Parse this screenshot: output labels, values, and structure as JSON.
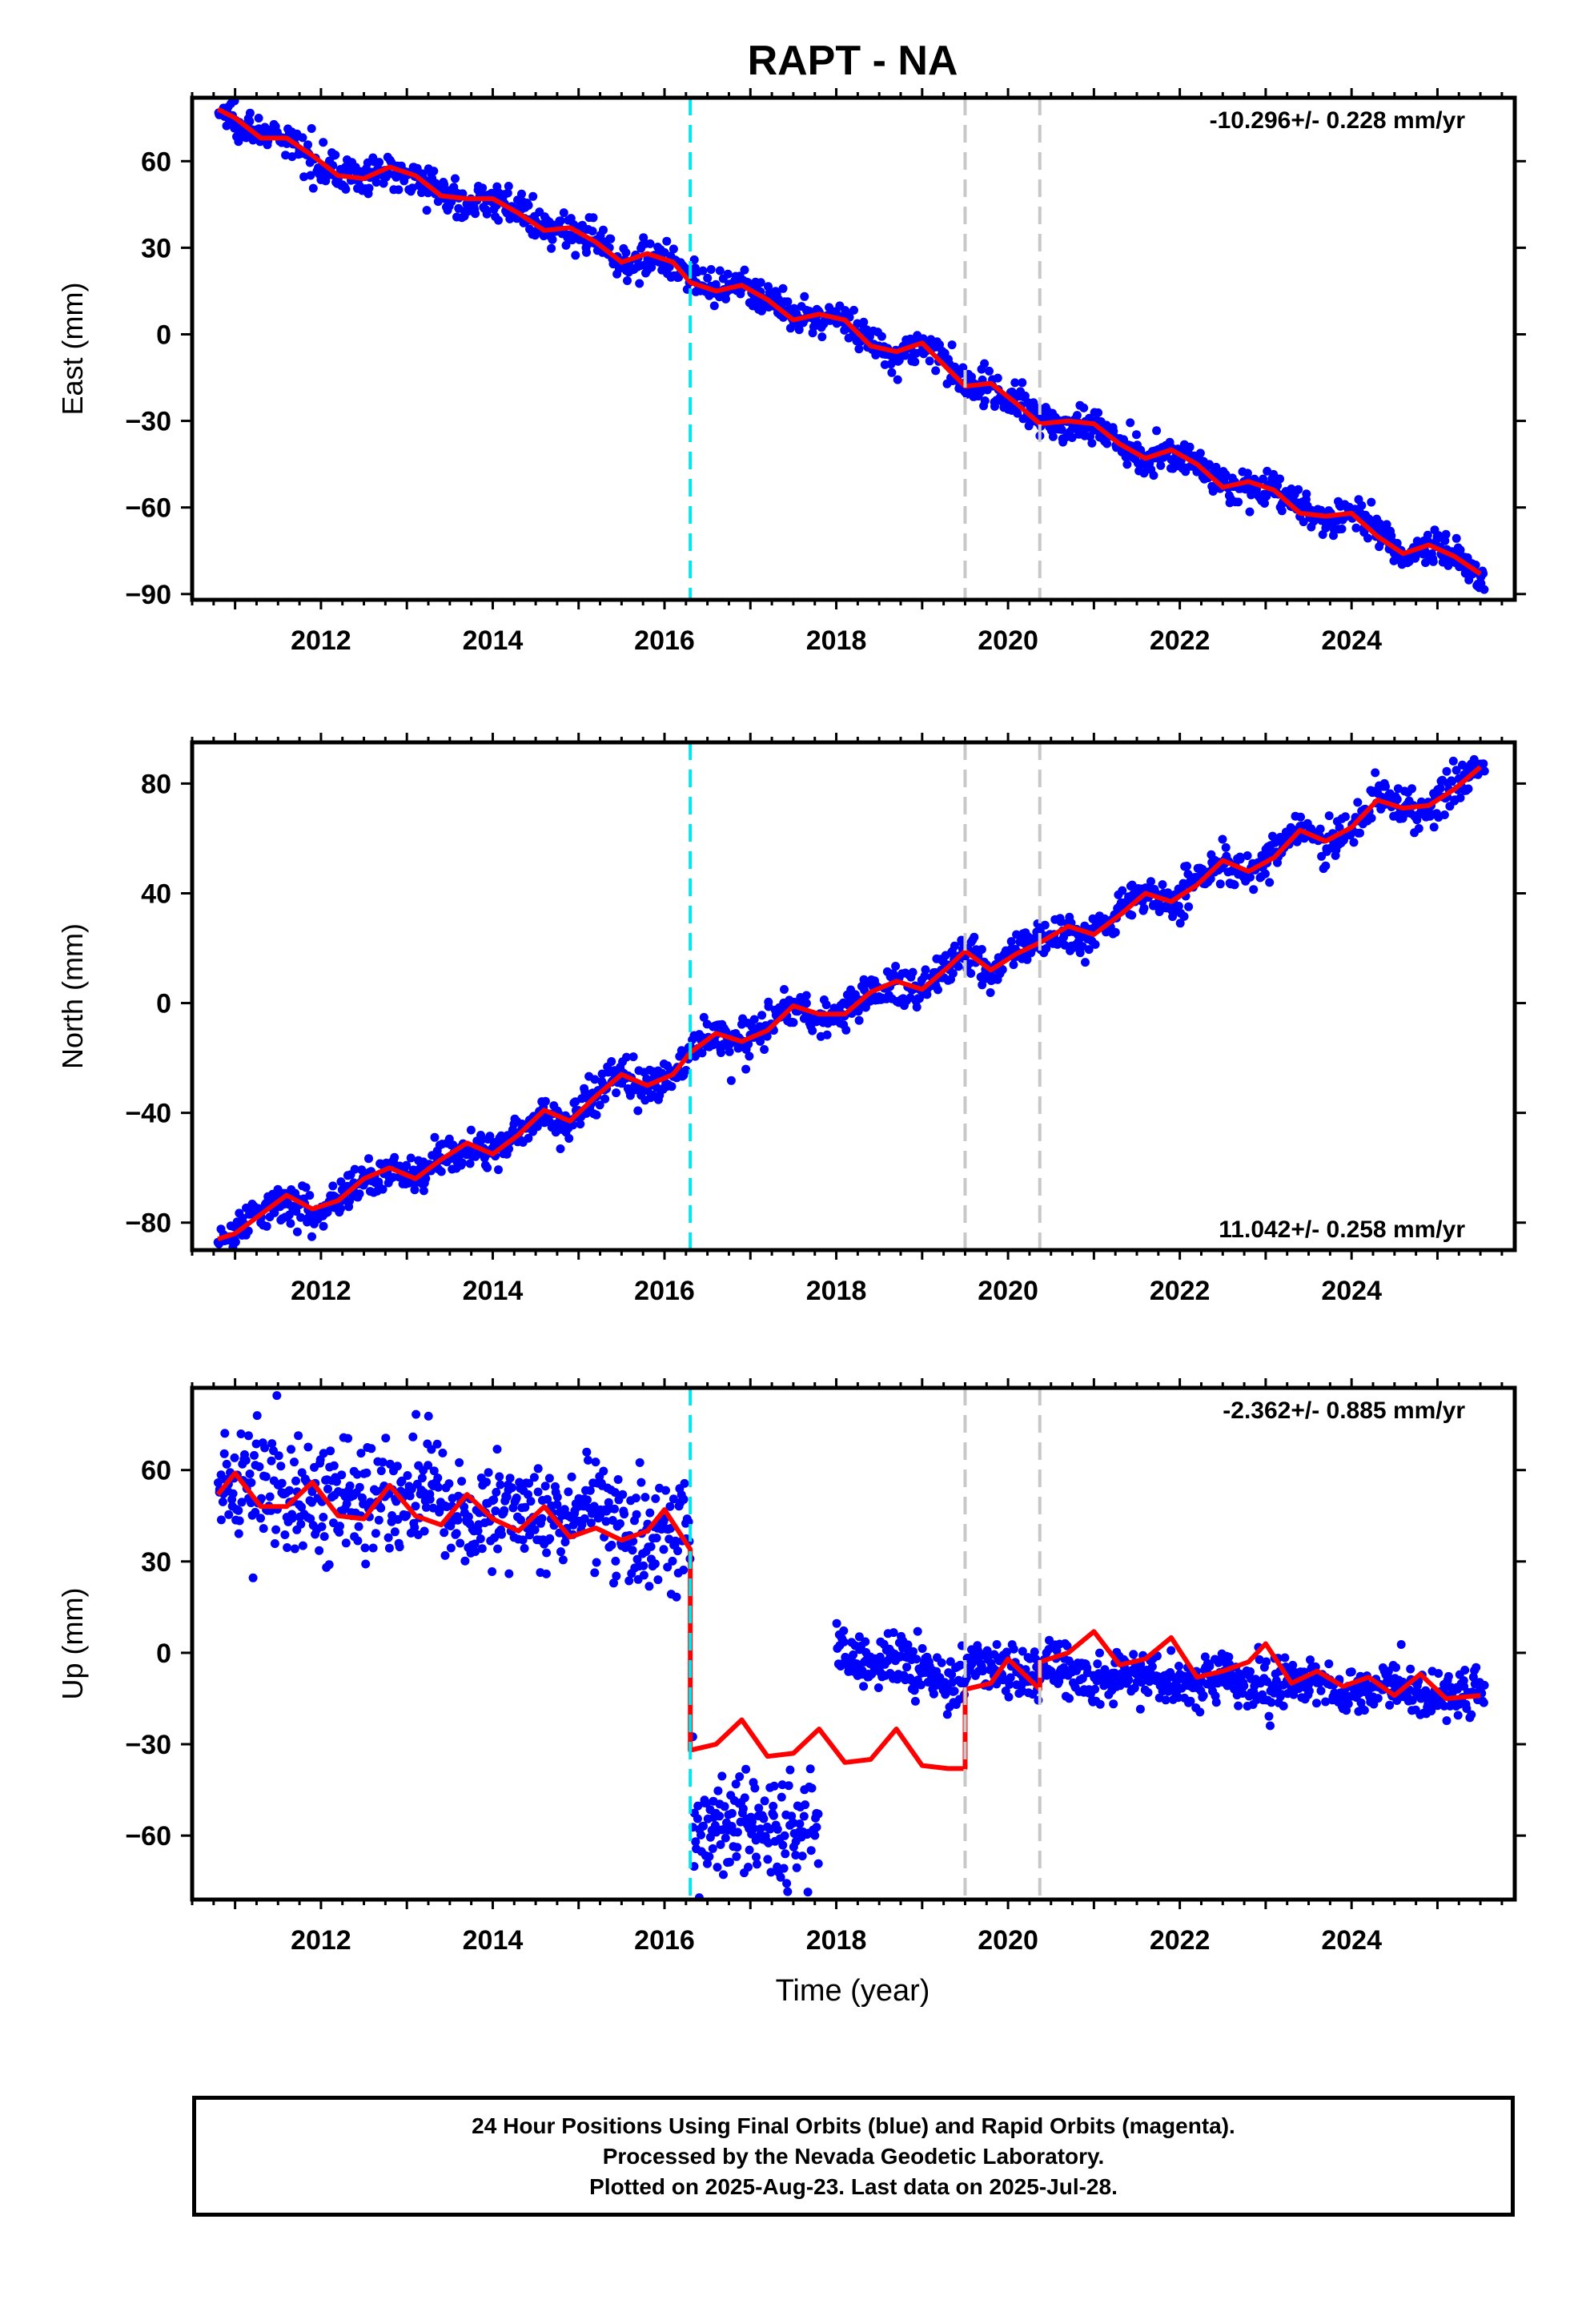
{
  "figure": {
    "title": "RAPT - NA",
    "xlabel": "Time (year)"
  },
  "footer": {
    "line1": "24 Hour Positions Using Final Orbits (blue) and Rapid Orbits (magenta).",
    "line2": "Processed by the Nevada Geodetic Laboratory.",
    "line3": "Plotted on 2025-Aug-23. Last data on 2025-Jul-28."
  },
  "colors": {
    "observations": "#0000ff",
    "model": "#ff0000",
    "antenna_change_line": "#00e5ee",
    "equipment_change_line": "#c8c8c8"
  },
  "chart_data": [
    {
      "type": "scatter",
      "component": "east",
      "ylabel": "East (mm)",
      "rate_label": "-10.296+/- 0.228 mm/yr",
      "rate_position": "top-right",
      "xlim": [
        2010.5,
        2025.9
      ],
      "ylim": [
        -92,
        82
      ],
      "yticks": [
        -90,
        -60,
        -30,
        0,
        30,
        60
      ],
      "ytick_labels": [
        "−90",
        "−60",
        "−30",
        "0",
        "30",
        "60"
      ],
      "xticks": [
        2012,
        2014,
        2016,
        2018,
        2020,
        2022,
        2024
      ],
      "xtick_labels": [
        "2012",
        "2014",
        "2016",
        "2018",
        "2020",
        "2022",
        "2024"
      ],
      "vertical_lines": [
        {
          "x": 2016.3,
          "kind": "antenna"
        },
        {
          "x": 2019.5,
          "kind": "equipment"
        },
        {
          "x": 2020.37,
          "kind": "equipment"
        }
      ],
      "model_line": {
        "x": [
          2010.8,
          2011.0,
          2011.3,
          2011.6,
          2011.9,
          2012.2,
          2012.5,
          2012.8,
          2013.1,
          2013.4,
          2013.7,
          2014.0,
          2014.3,
          2014.6,
          2014.9,
          2015.2,
          2015.5,
          2015.8,
          2016.1,
          2016.3,
          2016.6,
          2016.9,
          2017.2,
          2017.5,
          2017.8,
          2018.1,
          2018.4,
          2018.7,
          2019.0,
          2019.3,
          2019.5,
          2019.8,
          2020.1,
          2020.37,
          2020.7,
          2021.0,
          2021.3,
          2021.6,
          2021.9,
          2022.2,
          2022.5,
          2022.8,
          2023.1,
          2023.4,
          2023.7,
          2024.0,
          2024.3,
          2024.6,
          2024.9,
          2025.2,
          2025.5
        ],
        "y": [
          78,
          75,
          68,
          68,
          62,
          55,
          54,
          58,
          55,
          48,
          47,
          47,
          42,
          36,
          37,
          32,
          25,
          28,
          25,
          18,
          15,
          17,
          12,
          5,
          7,
          5,
          -4,
          -6,
          -3,
          -12,
          -18,
          -17,
          -24,
          -31,
          -30,
          -31,
          -38,
          -43,
          -40,
          -45,
          -53,
          -51,
          -54,
          -62,
          -63,
          -62,
          -70,
          -76,
          -73,
          -77,
          -83
        ]
      },
      "observations": {
        "x_start": 2010.8,
        "x_end": 2025.55,
        "count": 1300,
        "y_trend_start": 77,
        "y_trend_end": -84,
        "scatter_mm": 3,
        "seasonal_amplitude_mm": 3,
        "note_offsets": []
      }
    },
    {
      "type": "scatter",
      "component": "north",
      "ylabel": "North (mm)",
      "rate_label": "11.042+/- 0.258 mm/yr",
      "rate_position": "bottom-right",
      "xlim": [
        2010.5,
        2025.9
      ],
      "ylim": [
        -90,
        95
      ],
      "yticks": [
        -80,
        -40,
        0,
        40,
        80
      ],
      "ytick_labels": [
        "−80",
        "−40",
        "0",
        "40",
        "80"
      ],
      "xticks": [
        2012,
        2014,
        2016,
        2018,
        2020,
        2022,
        2024
      ],
      "xtick_labels": [
        "2012",
        "2014",
        "2016",
        "2018",
        "2020",
        "2022",
        "2024"
      ],
      "vertical_lines": [
        {
          "x": 2016.3,
          "kind": "antenna"
        },
        {
          "x": 2019.5,
          "kind": "equipment"
        },
        {
          "x": 2020.37,
          "kind": "equipment"
        }
      ],
      "model_line": {
        "x": [
          2010.8,
          2011.0,
          2011.3,
          2011.6,
          2011.9,
          2012.2,
          2012.5,
          2012.8,
          2013.1,
          2013.4,
          2013.7,
          2014.0,
          2014.3,
          2014.6,
          2014.9,
          2015.2,
          2015.5,
          2015.8,
          2016.1,
          2016.3,
          2016.6,
          2016.9,
          2017.2,
          2017.5,
          2017.8,
          2018.1,
          2018.4,
          2018.7,
          2019.0,
          2019.3,
          2019.5,
          2019.8,
          2020.1,
          2020.37,
          2020.7,
          2021.0,
          2021.3,
          2021.6,
          2021.9,
          2022.2,
          2022.5,
          2022.8,
          2023.1,
          2023.4,
          2023.7,
          2024.0,
          2024.3,
          2024.6,
          2024.9,
          2025.2,
          2025.5
        ],
        "y": [
          -86,
          -84,
          -77,
          -70,
          -75,
          -72,
          -64,
          -60,
          -64,
          -57,
          -51,
          -55,
          -48,
          -39,
          -43,
          -34,
          -26,
          -30,
          -26,
          -18,
          -11,
          -14,
          -10,
          -1,
          -4,
          -4,
          4,
          8,
          5,
          13,
          19,
          12,
          18,
          22,
          28,
          25,
          32,
          40,
          37,
          43,
          52,
          48,
          53,
          63,
          59,
          64,
          74,
          71,
          72,
          78,
          86
        ]
      },
      "observations": {
        "x_start": 2010.8,
        "x_end": 2025.55,
        "count": 1300,
        "y_trend_start": -84,
        "y_trend_end": 88,
        "scatter_mm": 3.5,
        "seasonal_amplitude_mm": 4,
        "note_offsets": []
      }
    },
    {
      "type": "scatter",
      "component": "up",
      "ylabel": "Up (mm)",
      "rate_label": "-2.362+/- 0.885 mm/yr",
      "rate_position": "top-right",
      "xlim": [
        2010.5,
        2025.9
      ],
      "ylim": [
        -81,
        87
      ],
      "yticks": [
        -60,
        -30,
        0,
        30,
        60
      ],
      "ytick_labels": [
        "−60",
        "−30",
        "0",
        "30",
        "60"
      ],
      "xticks": [
        2012,
        2014,
        2016,
        2018,
        2020,
        2022,
        2024
      ],
      "xtick_labels": [
        "2012",
        "2014",
        "2016",
        "2018",
        "2020",
        "2022",
        "2024"
      ],
      "vertical_lines": [
        {
          "x": 2016.3,
          "kind": "antenna"
        },
        {
          "x": 2019.5,
          "kind": "equipment"
        },
        {
          "x": 2020.37,
          "kind": "equipment"
        }
      ],
      "model_line": {
        "x": [
          2010.8,
          2011.0,
          2011.3,
          2011.6,
          2011.9,
          2012.2,
          2012.5,
          2012.8,
          2013.1,
          2013.4,
          2013.7,
          2014.0,
          2014.3,
          2014.6,
          2014.9,
          2015.2,
          2015.5,
          2015.8,
          2016.0,
          2016.3,
          2016.3,
          2016.6,
          2016.9,
          2017.2,
          2017.5,
          2017.8,
          2018.1,
          2018.4,
          2018.7,
          2019.0,
          2019.3,
          2019.5,
          2019.5,
          2019.8,
          2020.0,
          2020.37,
          2020.37,
          2020.7,
          2021.0,
          2021.3,
          2021.6,
          2021.9,
          2022.2,
          2022.5,
          2022.8,
          2023.0,
          2023.3,
          2023.6,
          2023.9,
          2024.2,
          2024.5,
          2024.8,
          2025.1,
          2025.5
        ],
        "y": [
          52,
          59,
          48,
          48,
          56,
          45,
          44,
          55,
          45,
          42,
          52,
          44,
          40,
          48,
          38,
          41,
          37,
          40,
          47,
          34,
          -32,
          -30,
          -22,
          -34,
          -33,
          -25,
          -36,
          -35,
          -25,
          -37,
          -38,
          -38,
          -12,
          -10,
          -2,
          -12,
          -3,
          0,
          7,
          -4,
          -2,
          5,
          -8,
          -6,
          -3,
          3,
          -10,
          -6,
          -11,
          -8,
          -14,
          -7,
          -15,
          -14
        ]
      },
      "observations": {
        "segments": [
          {
            "x_start": 2010.8,
            "x_end": 2016.3,
            "y_start": 55,
            "y_end": 40,
            "scatter_mm": 9,
            "seasonal_amplitude_mm": 8
          },
          {
            "x_start": 2016.32,
            "x_end": 2017.8,
            "y_start": -55,
            "y_end": -58,
            "scatter_mm": 9,
            "seasonal_amplitude_mm": 6
          },
          {
            "x_start": 2018.0,
            "x_end": 2019.5,
            "y_start": 0,
            "y_end": -8,
            "scatter_mm": 5,
            "seasonal_amplitude_mm": 5
          },
          {
            "x_start": 2019.5,
            "x_end": 2025.55,
            "y_start": -5,
            "y_end": -14,
            "scatter_mm": 4,
            "seasonal_amplitude_mm": 5
          }
        ],
        "count": 1500
      }
    }
  ]
}
